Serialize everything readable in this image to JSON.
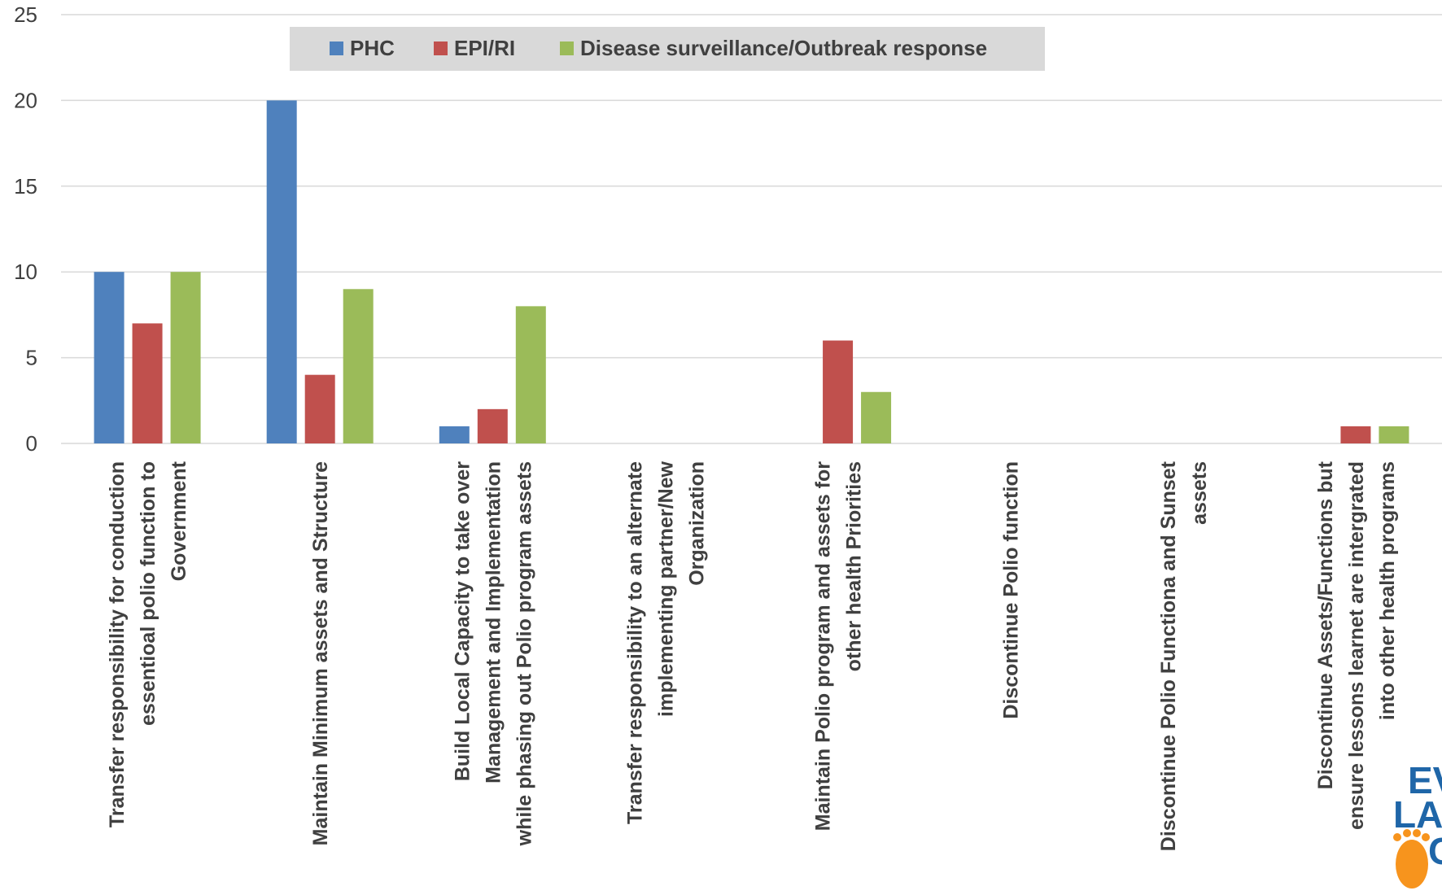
{
  "chart_data": {
    "type": "bar",
    "title": "",
    "xlabel": "",
    "ylabel": "",
    "ylim": [
      0,
      25
    ],
    "yticks": [
      0,
      5,
      10,
      15,
      20,
      25
    ],
    "grid": true,
    "legend_position": "top",
    "categories": [
      [
        "Transfer responsibility for conduction",
        "essentioal polio function to",
        "Government"
      ],
      [
        "Maintain Minimum assets and Structure"
      ],
      [
        "Build Local Capacity to take over",
        "Management and Implementation",
        "while phasing out  Polio program assets"
      ],
      [
        "Transfer responsibility to an alternate",
        "implementing partner/New",
        "Organization"
      ],
      [
        "Maintain  Polio program and assets for",
        "other health Priorities"
      ],
      [
        "Discontinue Polio function"
      ],
      [
        "Discontinue Polio Functiona and Sunset",
        "assets"
      ],
      [
        "Discontinue Assets/Functions but",
        "ensure lessons learnet are intergrated",
        "into other health programs"
      ]
    ],
    "series": [
      {
        "name": "PHC",
        "color": "#4F81BD",
        "values": [
          10,
          20,
          1,
          0,
          0,
          0,
          0,
          0
        ]
      },
      {
        "name": "EPI/RI",
        "color": "#C0504D",
        "values": [
          7,
          4,
          2,
          0,
          6,
          0,
          0,
          1
        ]
      },
      {
        "name": "Disease surveillance/Outbreak response",
        "color": "#9BBB59",
        "values": [
          10,
          9,
          8,
          0,
          3,
          0,
          0,
          1
        ]
      }
    ]
  },
  "logo": {
    "line1": "EVI",
    "line2": "LAST",
    "line3": "C"
  }
}
